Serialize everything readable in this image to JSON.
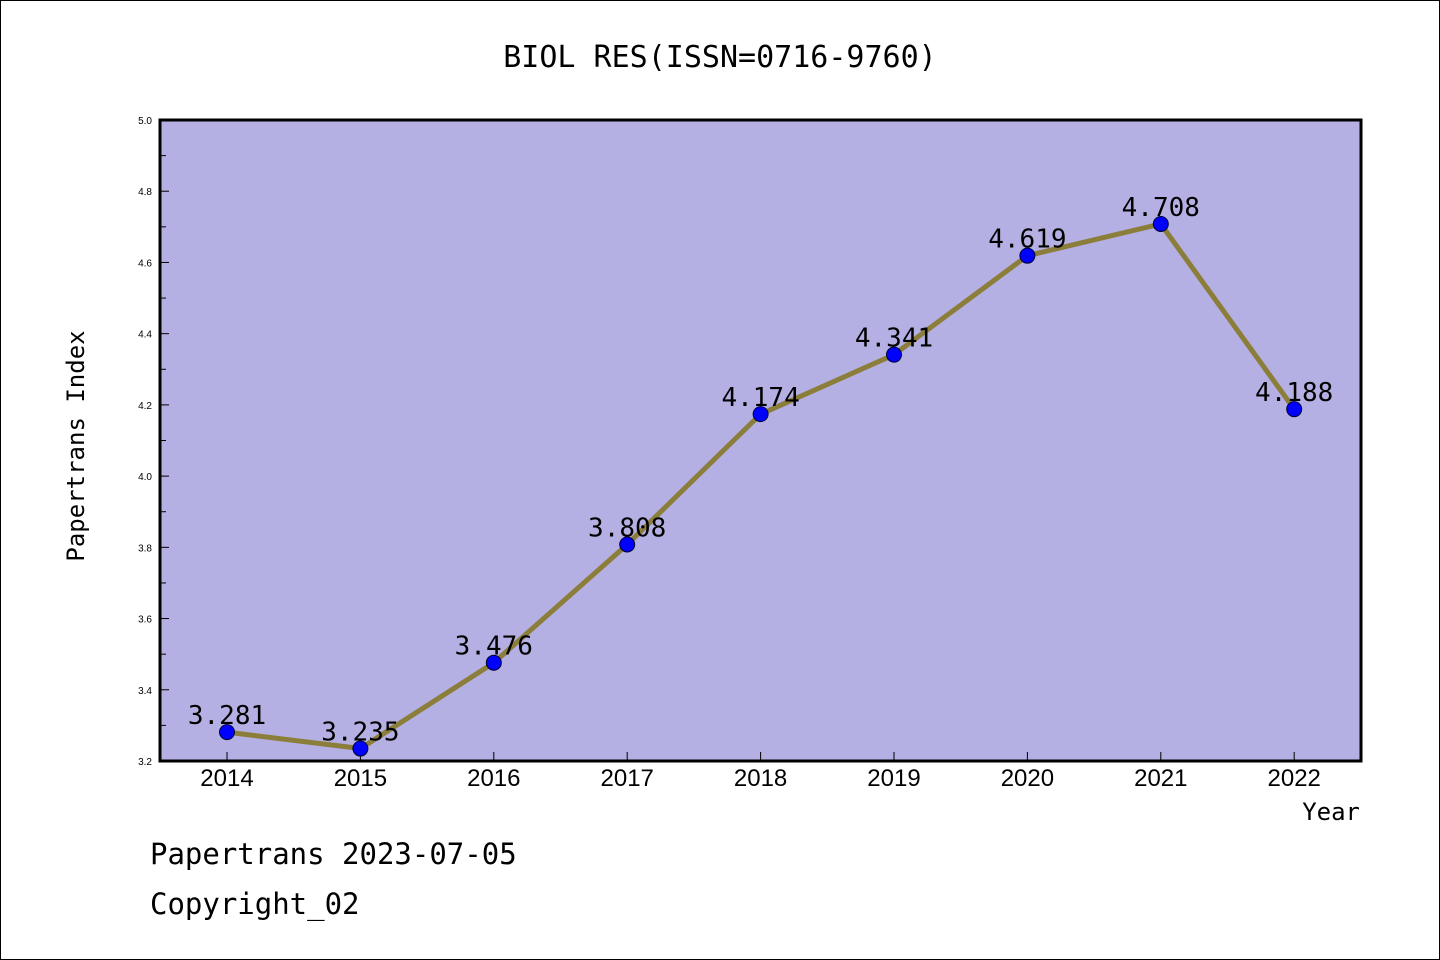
{
  "chart_data": {
    "type": "line",
    "title": "BIOL RES(ISSN=0716-9760)",
    "xlabel": "Year",
    "ylabel": "Papertrans Index",
    "categories": [
      "2014",
      "2015",
      "2016",
      "2017",
      "2018",
      "2019",
      "2020",
      "2021",
      "2022"
    ],
    "series": [
      {
        "values": [
          3.281,
          3.235,
          3.476,
          3.808,
          4.174,
          4.341,
          4.619,
          4.708,
          4.188
        ]
      }
    ],
    "data_labels": [
      "3.281",
      "3.235",
      "3.476",
      "3.808",
      "4.174",
      "4.341",
      "4.619",
      "4.708",
      "4.188"
    ],
    "ylim": [
      3.2,
      5.0
    ],
    "yticks": [
      3.2,
      3.4,
      3.6,
      3.8,
      4.0,
      4.2,
      4.4,
      4.6,
      4.8,
      5.0
    ],
    "ytick_labels": [
      "3.2",
      "3.4",
      "3.6",
      "3.8",
      "4.0",
      "4.2",
      "4.4",
      "4.6",
      "4.8",
      "5.0"
    ],
    "grid": false,
    "colors": {
      "plot_background": "#b5b0e3",
      "line": "#8b7d3a",
      "marker": "#0000ff"
    }
  },
  "footer": {
    "line1": "Papertrans 2023-07-05",
    "line2": "Copyright_02"
  }
}
